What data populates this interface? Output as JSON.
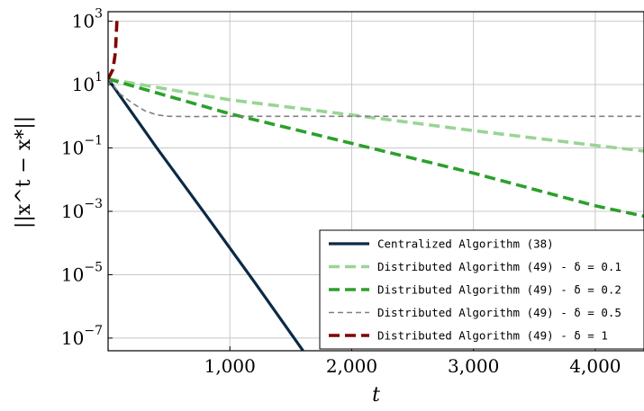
{
  "chart_data": {
    "type": "line",
    "xlabel": "t",
    "ylabel": "||x^t − x*||",
    "xlim": [
      0,
      4400
    ],
    "ylim_log10": [
      -7.4,
      3.3
    ],
    "yscale": "log",
    "grid": true,
    "legend_position": "bottom-right",
    "x_ticks": [
      {
        "value": 1000,
        "label": "1,000"
      },
      {
        "value": 2000,
        "label": "2,000"
      },
      {
        "value": 3000,
        "label": "3,000"
      },
      {
        "value": 4000,
        "label": "4,000"
      }
    ],
    "y_ticks": [
      {
        "exp": 3,
        "base": "10",
        "sup": "3"
      },
      {
        "exp": 1,
        "base": "10",
        "sup": "1"
      },
      {
        "exp": -1,
        "base": "10",
        "sup": "−1"
      },
      {
        "exp": -3,
        "base": "10",
        "sup": "−3"
      },
      {
        "exp": -5,
        "base": "10",
        "sup": "−5"
      },
      {
        "exp": -7,
        "base": "10",
        "sup": "−7"
      }
    ],
    "series": [
      {
        "name": "Centralized Algorithm (38)",
        "color": "#0b2a45",
        "style": "solid",
        "points": [
          [
            0,
            15
          ],
          [
            400,
            0.1
          ],
          [
            800,
            0.0008
          ],
          [
            1200,
            6e-06
          ],
          [
            1600,
            4e-08
          ]
        ]
      },
      {
        "name": "Distributed Algorithm (49) - δ = 0.1",
        "color": "#98d594",
        "style": "dashed",
        "points": [
          [
            0,
            15
          ],
          [
            1000,
            3.3
          ],
          [
            2000,
            1.1
          ],
          [
            3000,
            0.35
          ],
          [
            4000,
            0.12
          ],
          [
            4400,
            0.08
          ]
        ]
      },
      {
        "name": "Distributed Algorithm (49) - δ = 0.2",
        "color": "#2ca02c",
        "style": "dashed",
        "points": [
          [
            0,
            15
          ],
          [
            1000,
            1.2
          ],
          [
            2000,
            0.14
          ],
          [
            3000,
            0.016
          ],
          [
            4000,
            0.0015
          ],
          [
            4400,
            0.0007
          ]
        ]
      },
      {
        "name": "Distributed Algorithm (49) - δ = 0.5",
        "color": "#808080",
        "style": "thin-dashed",
        "points": [
          [
            0,
            15
          ],
          [
            100,
            5
          ],
          [
            200,
            2.6
          ],
          [
            300,
            1.5
          ],
          [
            400,
            1.1
          ],
          [
            500,
            1.0
          ],
          [
            700,
            0.98
          ],
          [
            1000,
            1.0
          ],
          [
            2000,
            1.0
          ],
          [
            3000,
            1.0
          ],
          [
            4000,
            1.0
          ],
          [
            4400,
            1.0
          ]
        ]
      },
      {
        "name": "Distributed Algorithm (49) - δ = 1",
        "color": "#800000",
        "style": "dashed",
        "points": [
          [
            0,
            15
          ],
          [
            40,
            30
          ],
          [
            60,
            100
          ],
          [
            75,
            1500
          ]
        ]
      }
    ]
  }
}
